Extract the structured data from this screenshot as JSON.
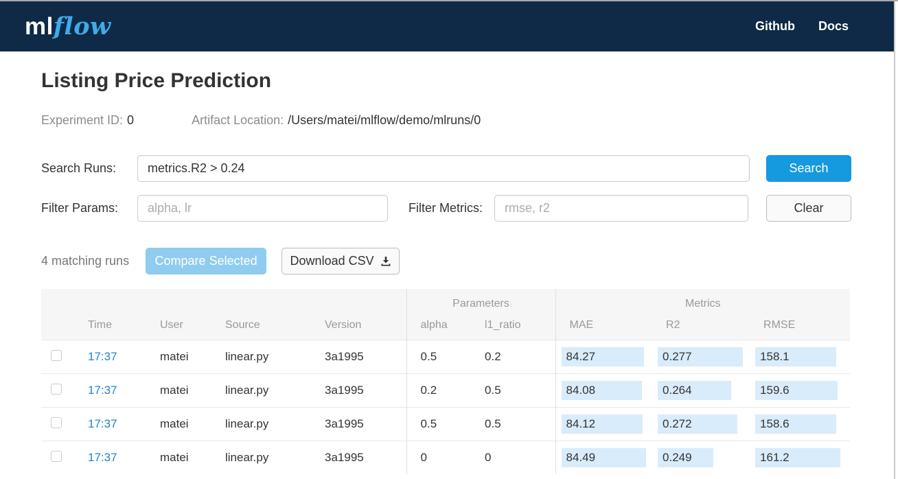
{
  "header": {
    "brand_ml": "ml",
    "brand_flow": "flow",
    "nav": [
      {
        "label": "Github"
      },
      {
        "label": "Docs"
      }
    ]
  },
  "page": {
    "title": "Listing Price Prediction"
  },
  "experiment": {
    "id_label": "Experiment ID:",
    "id_value": "0",
    "artifact_label": "Artifact Location:",
    "artifact_value": "/Users/matei/mlflow/demo/mlruns/0"
  },
  "search": {
    "label": "Search Runs:",
    "value": "metrics.R2 > 0.24",
    "button": "Search"
  },
  "filters": {
    "params_label": "Filter Params:",
    "params_placeholder": "alpha, lr",
    "metrics_label": "Filter Metrics:",
    "metrics_placeholder": "rmse, r2",
    "clear_button": "Clear"
  },
  "actions": {
    "matching_text": "4 matching runs",
    "compare_button": "Compare Selected",
    "download_button": "Download CSV",
    "download_icon": "download-icon"
  },
  "colors": {
    "header_bg": "#0e2a47",
    "brand_blue": "#3fabe8",
    "primary_blue": "#1599df",
    "link_blue": "#1d83d4",
    "compare_disabled_bg": "#8fccf0",
    "metric_bar_bg": "#d9ecfb"
  },
  "table": {
    "group_headers": {
      "parameters": "Parameters",
      "metrics": "Metrics"
    },
    "columns": [
      "Time",
      "User",
      "Source",
      "Version",
      "alpha",
      "l1_ratio",
      "MAE",
      "R2",
      "RMSE"
    ],
    "rows": [
      {
        "time": "17:37",
        "user": "matei",
        "source": "linear.py",
        "version": "3a1995",
        "alpha": "0.5",
        "l1_ratio": "0.2",
        "mae": "84.27",
        "mae_bar": 97,
        "r2": "0.277",
        "r2_bar": 98,
        "rmse": "158.1",
        "rmse_bar": 91
      },
      {
        "time": "17:37",
        "user": "matei",
        "source": "linear.py",
        "version": "3a1995",
        "alpha": "0.2",
        "l1_ratio": "0.5",
        "mae": "84.08",
        "mae_bar": 94,
        "r2": "0.264",
        "r2_bar": 85,
        "rmse": "159.6",
        "rmse_bar": 92
      },
      {
        "time": "17:37",
        "user": "matei",
        "source": "linear.py",
        "version": "3a1995",
        "alpha": "0.5",
        "l1_ratio": "0.5",
        "mae": "84.12",
        "mae_bar": 95,
        "r2": "0.272",
        "r2_bar": 92,
        "rmse": "158.6",
        "rmse_bar": 91
      },
      {
        "time": "17:37",
        "user": "matei",
        "source": "linear.py",
        "version": "3a1995",
        "alpha": "0",
        "l1_ratio": "0",
        "mae": "84.49",
        "mae_bar": 99,
        "r2": "0.249",
        "r2_bar": 64,
        "rmse": "161.2",
        "rmse_bar": 95
      }
    ]
  }
}
